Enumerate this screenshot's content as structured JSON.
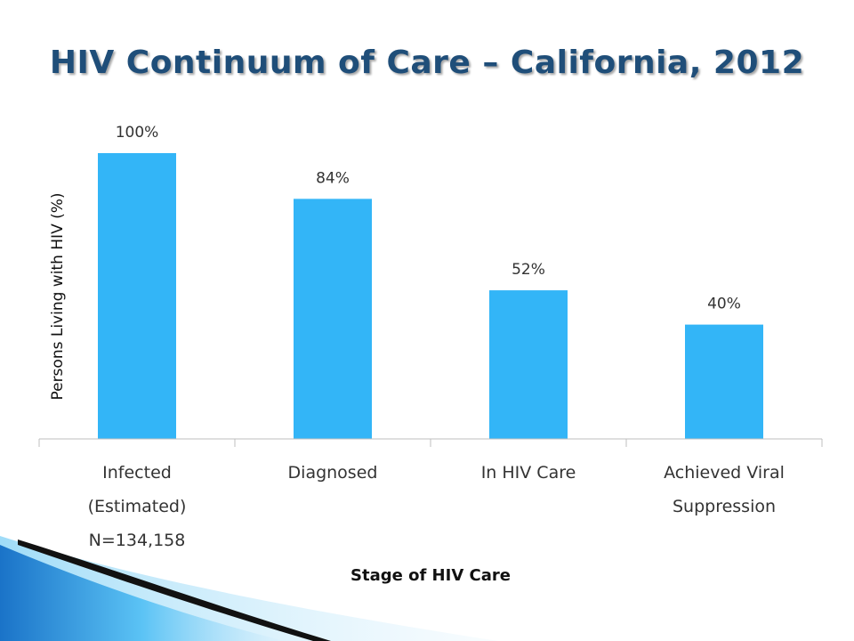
{
  "chart_data": {
    "type": "bar",
    "title": "HIV Continuum of Care – California, 2012",
    "categories": [
      [
        "Infected",
        "(Estimated)",
        "N=134,158"
      ],
      [
        "Diagnosed"
      ],
      [
        "In HIV Care"
      ],
      [
        "Achieved Viral",
        "Suppression"
      ]
    ],
    "values": [
      100,
      84,
      52,
      40
    ],
    "data_labels": [
      "100%",
      "84%",
      "52%",
      "40%"
    ],
    "xlabel": "Stage of HIV Care",
    "ylabel": "Persons Living with HIV (%)",
    "ylim": [
      0,
      100
    ],
    "grid": false,
    "bar_color": "#33b5f7",
    "title_color": "#1f4e79"
  }
}
